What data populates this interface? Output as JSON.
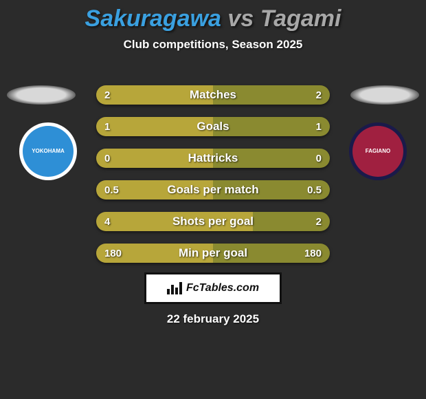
{
  "title": {
    "left_name": "Sakuragawa",
    "vs": " vs ",
    "right_name": "Tagami",
    "left_color": "#3aa0e0",
    "right_color": "#a8a8a8",
    "fontsize": 34
  },
  "subtitle": {
    "text": "Club competitions, Season 2025",
    "fontsize": 17
  },
  "rows_style": {
    "label_fontsize": 17,
    "value_fontsize": 15,
    "left_bar_color": "#b7a63a",
    "right_bar_color": "#8a8a30",
    "track_color": "#3a3a3a"
  },
  "stats": [
    {
      "label": "Matches",
      "left_val": "2",
      "right_val": "2",
      "left_pct": 50,
      "right_pct": 50
    },
    {
      "label": "Goals",
      "left_val": "1",
      "right_val": "1",
      "left_pct": 50,
      "right_pct": 50
    },
    {
      "label": "Hattricks",
      "left_val": "0",
      "right_val": "0",
      "left_pct": 50,
      "right_pct": 50
    },
    {
      "label": "Goals per match",
      "left_val": "0.5",
      "right_val": "0.5",
      "left_pct": 50,
      "right_pct": 50
    },
    {
      "label": "Shots per goal",
      "left_val": "4",
      "right_val": "2",
      "left_pct": 67,
      "right_pct": 33
    },
    {
      "label": "Min per goal",
      "left_val": "180",
      "right_val": "180",
      "left_pct": 50,
      "right_pct": 50
    }
  ],
  "badges": {
    "left": {
      "ring": "#ffffff",
      "fill": "#2e8fd6",
      "label": "YOKOHAMA"
    },
    "right": {
      "ring": "#1a1a4a",
      "fill": "#a02040",
      "label": "FAGIANO"
    }
  },
  "footer": {
    "brand": "FcTables.com",
    "fontsize": 16
  },
  "date": {
    "text": "22 february 2025",
    "fontsize": 17
  },
  "background_color": "#2b2b2b"
}
